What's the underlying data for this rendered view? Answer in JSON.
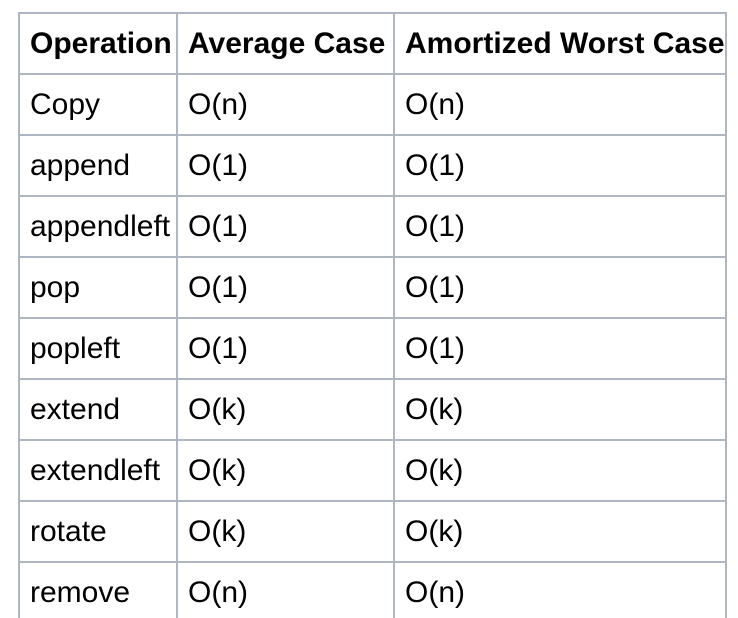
{
  "table": {
    "columns": [
      "Operation",
      "Average Case",
      "Amortized Worst Case"
    ],
    "rows": [
      [
        "Copy",
        "O(n)",
        "O(n)"
      ],
      [
        "append",
        "O(1)",
        "O(1)"
      ],
      [
        "appendleft",
        "O(1)",
        "O(1)"
      ],
      [
        "pop",
        "O(1)",
        "O(1)"
      ],
      [
        "popleft",
        "O(1)",
        "O(1)"
      ],
      [
        "extend",
        "O(k)",
        "O(k)"
      ],
      [
        "extendleft",
        "O(k)",
        "O(k)"
      ],
      [
        "rotate",
        "O(k)",
        "O(k)"
      ],
      [
        "remove",
        "O(n)",
        "O(n)"
      ]
    ],
    "colors": {
      "border": "#aeb6c2",
      "text": "#000000",
      "background": "#ffffff"
    }
  },
  "chart_data": {
    "type": "table",
    "title": "",
    "columns": [
      "Operation",
      "Average Case",
      "Amortized Worst Case"
    ],
    "rows": [
      [
        "Copy",
        "O(n)",
        "O(n)"
      ],
      [
        "append",
        "O(1)",
        "O(1)"
      ],
      [
        "appendleft",
        "O(1)",
        "O(1)"
      ],
      [
        "pop",
        "O(1)",
        "O(1)"
      ],
      [
        "popleft",
        "O(1)",
        "O(1)"
      ],
      [
        "extend",
        "O(k)",
        "O(k)"
      ],
      [
        "extendleft",
        "O(k)",
        "O(k)"
      ],
      [
        "rotate",
        "O(k)",
        "O(k)"
      ],
      [
        "remove",
        "O(n)",
        "O(n)"
      ]
    ]
  }
}
